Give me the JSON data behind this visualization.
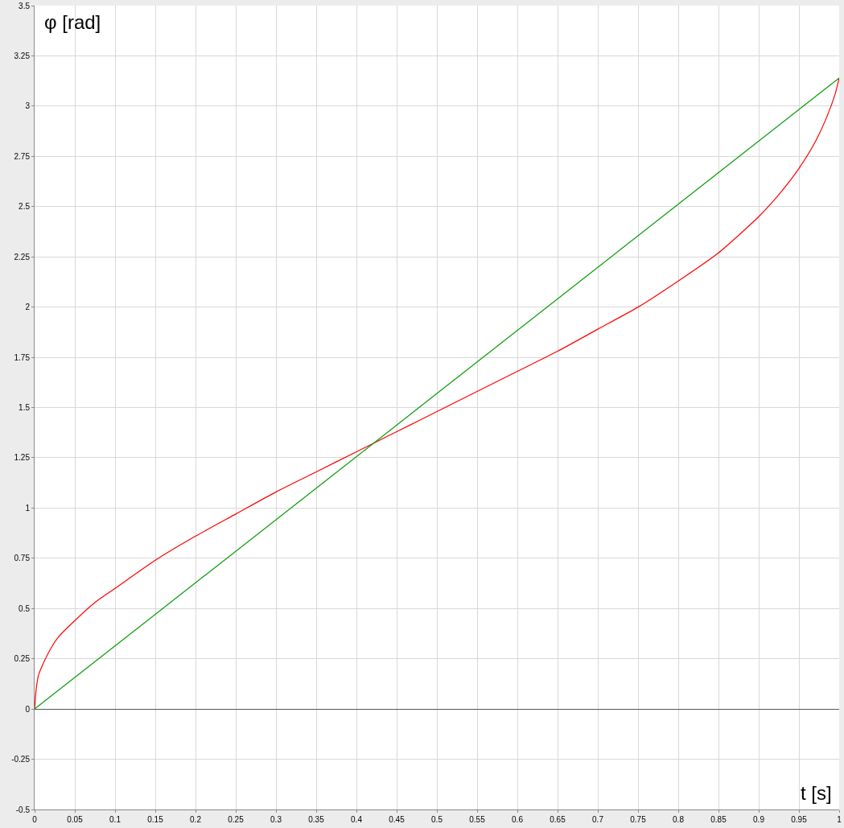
{
  "chart_data": {
    "type": "line",
    "xlabel": "t [s]",
    "ylabel": "φ [rad]",
    "xlim": [
      0,
      1
    ],
    "xticks": [
      0,
      0.05,
      0.1,
      0.15,
      0.2,
      0.25,
      0.3,
      0.35,
      0.4,
      0.45,
      0.5,
      0.55,
      0.6,
      0.65,
      0.7,
      0.75,
      0.8,
      0.85,
      0.9,
      0.95,
      1
    ],
    "ylim": [
      -0.5,
      3.5
    ],
    "yticks": [
      -0.5,
      -0.25,
      0,
      0.25,
      0.5,
      0.75,
      1,
      1.25,
      1.5,
      1.75,
      2,
      2.25,
      2.5,
      2.75,
      3,
      3.25,
      3.5
    ],
    "grid": true,
    "marker": "none",
    "line_style": "solid",
    "series": [
      {
        "color": "#ff0000",
        "x": [
          0,
          0.002,
          0.005,
          0.01,
          0.02,
          0.03,
          0.05,
          0.075,
          0.1,
          0.15,
          0.2,
          0.25,
          0.3,
          0.35,
          0.4,
          0.43,
          0.45,
          0.5,
          0.55,
          0.6,
          0.65,
          0.7,
          0.75,
          0.8,
          0.85,
          0.9,
          0.925,
          0.95,
          0.97,
          0.985,
          0.995,
          1
        ],
        "values": [
          0,
          0.1,
          0.17,
          0.22,
          0.3,
          0.36,
          0.44,
          0.53,
          0.6,
          0.74,
          0.86,
          0.97,
          1.08,
          1.18,
          1.28,
          1.34,
          1.38,
          1.48,
          1.58,
          1.68,
          1.78,
          1.89,
          2.0,
          2.13,
          2.27,
          2.45,
          2.56,
          2.69,
          2.82,
          2.95,
          3.06,
          3.14
        ]
      },
      {
        "color": "#009900",
        "x": [
          0,
          1
        ],
        "values": [
          0,
          3.14
        ]
      }
    ]
  }
}
